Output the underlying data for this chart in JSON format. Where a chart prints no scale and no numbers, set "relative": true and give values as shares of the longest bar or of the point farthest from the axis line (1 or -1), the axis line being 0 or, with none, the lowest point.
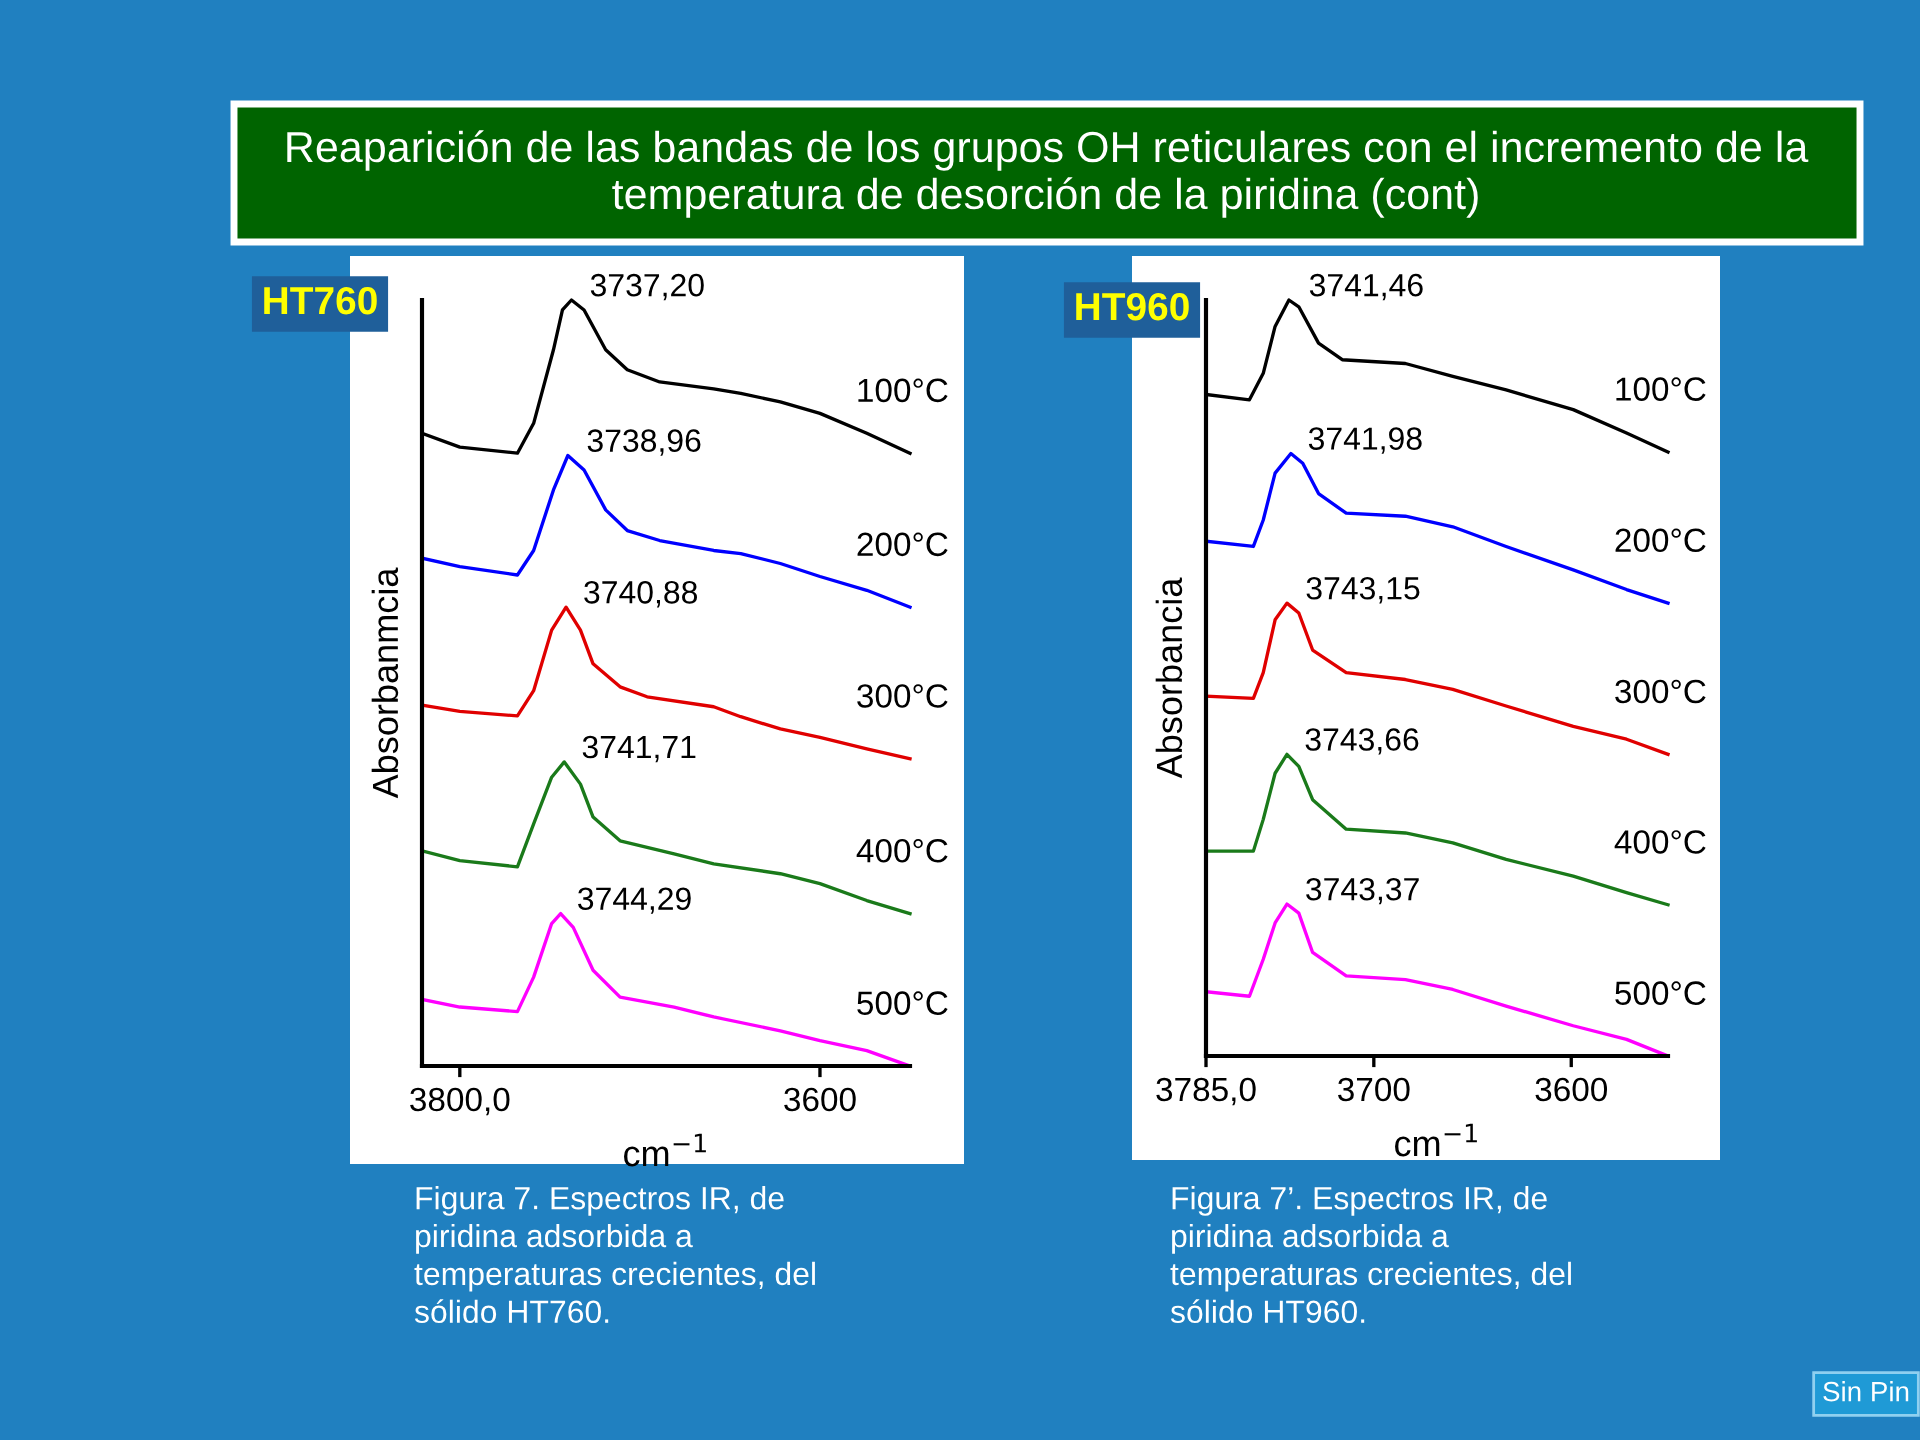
{
  "chart_data": [
    {
      "type": "line",
      "title": "HT760",
      "subtitle": "Reaparición de las bandas de los grupos OH reticulares con el incremento de la temperatura de desorción de la piridina (cont)",
      "xlabel": "cm$^{−1}$",
      "ylabel": "Absorbanmcia",
      "relative": true,
      "xlim": [
        3821,
        3550
      ],
      "xticks": [
        {
          "value": 3800,
          "label": "3800,0"
        },
        3600
      ],
      "series": [
        {
          "name": "100°C",
          "color": "#000000",
          "x": [
            3821,
            3800,
            3768,
            3759,
            3748,
            3743,
            3738,
            3731,
            3719,
            3707,
            3689,
            3659,
            3644,
            3622,
            3600,
            3574,
            3550
          ],
          "values": [
            0.826,
            0.808,
            0.8,
            0.839,
            0.935,
            0.987,
            1.0,
            0.987,
            0.935,
            0.909,
            0.893,
            0.884,
            0.878,
            0.867,
            0.852,
            0.826,
            0.8
          ]
        },
        {
          "name": "200°C",
          "color": "#0000ff",
          "x": [
            3821,
            3800,
            3768,
            3759,
            3748,
            3740,
            3731,
            3719,
            3707,
            3689,
            3659,
            3644,
            3622,
            3600,
            3574,
            3550
          ],
          "values": [
            0.663,
            0.652,
            0.641,
            0.673,
            0.752,
            0.797,
            0.778,
            0.726,
            0.699,
            0.686,
            0.673,
            0.669,
            0.656,
            0.639,
            0.621,
            0.599
          ]
        },
        {
          "name": "300°C",
          "color": "#e00000",
          "x": [
            3821,
            3800,
            3768,
            3759,
            3749,
            3741,
            3733,
            3726,
            3711,
            3696,
            3659,
            3644,
            3622,
            3600,
            3574,
            3550
          ],
          "values": [
            0.471,
            0.463,
            0.457,
            0.49,
            0.569,
            0.599,
            0.569,
            0.525,
            0.495,
            0.482,
            0.469,
            0.456,
            0.44,
            0.429,
            0.414,
            0.401
          ]
        },
        {
          "name": "400°C",
          "color": "#1a7a1a",
          "x": [
            3821,
            3800,
            3768,
            3759,
            3749,
            3742,
            3733,
            3726,
            3711,
            3681,
            3659,
            3622,
            3600,
            3574,
            3550
          ],
          "values": [
            0.281,
            0.268,
            0.26,
            0.316,
            0.377,
            0.397,
            0.368,
            0.325,
            0.294,
            0.277,
            0.264,
            0.251,
            0.238,
            0.216,
            0.199
          ]
        },
        {
          "name": "500°C",
          "color": "#ff00ff",
          "x": [
            3821,
            3800,
            3768,
            3759,
            3749,
            3744,
            3737,
            3726,
            3711,
            3681,
            3659,
            3622,
            3600,
            3574,
            3550
          ],
          "values": [
            0.087,
            0.077,
            0.071,
            0.116,
            0.186,
            0.199,
            0.181,
            0.125,
            0.09,
            0.077,
            0.064,
            0.046,
            0.033,
            0.02,
            0.0
          ]
        }
      ],
      "annotations": [
        {
          "text": "3737,20",
          "x": 3737.2,
          "y": 1.0
        },
        {
          "text": "3738,96",
          "x": 3738.96,
          "y": 0.797
        },
        {
          "text": "3740,88",
          "x": 3740.88,
          "y": 0.599
        },
        {
          "text": "3741,71",
          "x": 3741.71,
          "y": 0.397
        },
        {
          "text": "3744,29",
          "x": 3744.29,
          "y": 0.199
        },
        "Figura 7. Espectros IR, de piridina adsorbida a temperaturas crecientes, del sólido HT760."
      ]
    },
    {
      "type": "line",
      "title": "HT960",
      "xlabel": "cm$^{−1}$",
      "ylabel": "Absorbancia",
      "relative": true,
      "xlim": [
        3785,
        3551
      ],
      "xticks": [
        {
          "value": 3785,
          "label": "3785,0"
        },
        3700,
        3600
      ],
      "series": [
        {
          "name": "100°C",
          "color": "#000000",
          "x": [
            3785,
            3763,
            3756,
            3750,
            3743,
            3738,
            3728,
            3716,
            3684,
            3660,
            3633,
            3599,
            3572,
            3551
          ],
          "values": [
            0.875,
            0.868,
            0.903,
            0.965,
            1.0,
            0.991,
            0.943,
            0.921,
            0.916,
            0.899,
            0.881,
            0.855,
            0.824,
            0.799
          ]
        },
        {
          "name": "200°C",
          "color": "#0000ff",
          "x": [
            3785,
            3761,
            3756,
            3750,
            3742,
            3736,
            3728,
            3714,
            3684,
            3660,
            3633,
            3599,
            3572,
            3551
          ],
          "values": [
            0.681,
            0.674,
            0.709,
            0.771,
            0.797,
            0.784,
            0.744,
            0.718,
            0.714,
            0.7,
            0.674,
            0.643,
            0.617,
            0.599
          ]
        },
        {
          "name": "300°C",
          "color": "#e00000",
          "x": [
            3785,
            3761,
            3756,
            3750,
            3744,
            3738,
            3731,
            3714,
            3684,
            3660,
            3633,
            3599,
            3572,
            3551
          ],
          "values": [
            0.476,
            0.473,
            0.507,
            0.577,
            0.599,
            0.586,
            0.537,
            0.507,
            0.498,
            0.485,
            0.463,
            0.436,
            0.419,
            0.399
          ]
        },
        {
          "name": "400°C",
          "color": "#1a7a1a",
          "x": [
            3785,
            3761,
            3756,
            3750,
            3744,
            3738,
            3731,
            3714,
            3684,
            3660,
            3633,
            3599,
            3572,
            3551
          ],
          "values": [
            0.271,
            0.271,
            0.313,
            0.374,
            0.399,
            0.383,
            0.339,
            0.3,
            0.295,
            0.282,
            0.26,
            0.238,
            0.216,
            0.2
          ]
        },
        {
          "name": "500°C",
          "color": "#ff00ff",
          "x": [
            3785,
            3763,
            3756,
            3750,
            3744,
            3738,
            3731,
            3714,
            3684,
            3660,
            3633,
            3599,
            3572,
            3551
          ],
          "values": [
            0.085,
            0.079,
            0.128,
            0.176,
            0.201,
            0.189,
            0.137,
            0.106,
            0.101,
            0.088,
            0.066,
            0.04,
            0.022,
            0.0
          ]
        }
      ],
      "annotations": [
        {
          "text": "3741,46",
          "x": 3741.46,
          "y": 1.0
        },
        {
          "text": "3741,98",
          "x": 3741.98,
          "y": 0.797
        },
        {
          "text": "3743,15",
          "x": 3743.15,
          "y": 0.599
        },
        {
          "text": "3743,66",
          "x": 3743.66,
          "y": 0.399
        },
        {
          "text": "3743,37",
          "x": 3743.37,
          "y": 0.201
        },
        "Figura 7’. Espectros IR, de piridina adsorbida a temperaturas crecientes, del sólido HT960.",
        "Sin Pin"
      ]
    }
  ]
}
